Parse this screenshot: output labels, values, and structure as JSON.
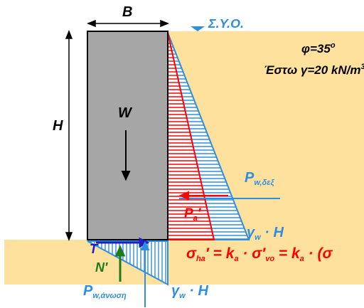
{
  "labels": {
    "B": "B",
    "H": "H",
    "W": "W",
    "gwl": "Σ.Υ.Ο.",
    "phi": "φ=35",
    "phi_deg": "o",
    "gamma_prefix": "Έστω γ=20 kN/m",
    "gamma_exp": "3",
    "pw_side_main": "P",
    "pw_side_sub": "w,δεξ",
    "pa_main": "P",
    "pa_sub": "a",
    "pa_prime": "′",
    "gwH_side_main": "γ",
    "gwH_side_sub": "w",
    "gwH_side_rest": " · H",
    "T": "T",
    "N": "N′",
    "pw_up_main": "P",
    "pw_up_sub": "w,άνωση",
    "gwH_base_main": "γ",
    "gwH_base_sub": "w",
    "gwH_base_rest": " · H",
    "formula_lhs_main": "σ",
    "formula_lhs_sub": "ha",
    "formula_body": "′ = k",
    "formula_ka_sub": "a",
    "formula_mid": " · σ′",
    "formula_vo_sub": "vo",
    "formula_tail": " = k",
    "formula_ka2_sub": "a",
    "formula_end": " · (σ"
  },
  "colors": {
    "soil": "#fde19d",
    "wall": "#a6a6a6",
    "red": "#ff0000",
    "blue": "#2f8ee0",
    "black": "#000000",
    "green": "#1f7a1f",
    "navy": "#1f1fc0"
  }
}
